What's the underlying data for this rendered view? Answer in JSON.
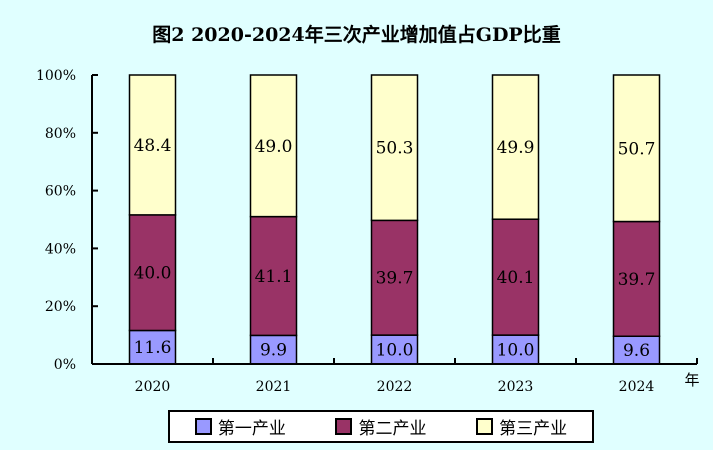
{
  "chart_data": {
    "type": "bar",
    "stacked": true,
    "title": "图2  2020-2024年三次产业增加值占GDP比重",
    "xlabel": "年",
    "ylabel": "",
    "ylim": [
      0,
      100
    ],
    "yticks": [
      "0%",
      "20%",
      "40%",
      "60%",
      "80%",
      "100%"
    ],
    "categories": [
      "2020",
      "2021",
      "2022",
      "2023",
      "2024"
    ],
    "series": [
      {
        "name": "第一产业",
        "color": "#9999ff",
        "values": [
          11.6,
          9.9,
          10.0,
          10.0,
          9.6
        ],
        "labels": [
          "11.6",
          "9.9",
          "10.0",
          "10.0",
          "9.6"
        ]
      },
      {
        "name": "第二产业",
        "color": "#993366",
        "values": [
          40.0,
          41.1,
          39.7,
          40.1,
          39.7
        ],
        "labels": [
          "40.0",
          "41.1",
          "39.7",
          "40.1",
          "39.7"
        ]
      },
      {
        "name": "第三产业",
        "color": "#ffffcc",
        "values": [
          48.4,
          49.0,
          50.3,
          49.9,
          50.7
        ],
        "labels": [
          "48.4",
          "49.0",
          "50.3",
          "49.9",
          "50.7"
        ]
      }
    ],
    "legend": "bottom"
  }
}
